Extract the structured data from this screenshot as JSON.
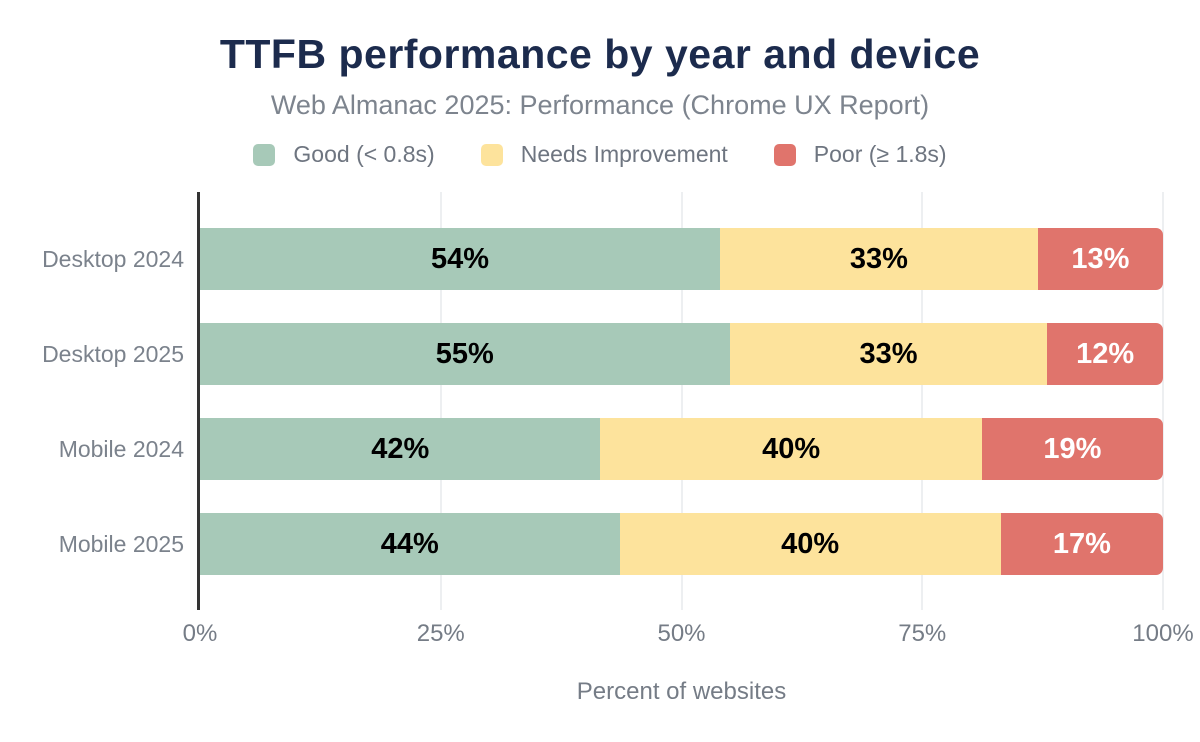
{
  "header": {
    "title": "TTFB performance by year and device",
    "subtitle": "Web Almanac 2025: Performance (Chrome UX Report)"
  },
  "colors": {
    "good": "#a7c9b8",
    "needs_improvement": "#fde39c",
    "poor": "#e0746c",
    "title": "#1c2b4d",
    "axis_line": "#333333",
    "gridline": "#edeff1",
    "muted_text": "#757c86"
  },
  "chart_data": {
    "type": "bar",
    "orientation": "horizontal",
    "stacked": true,
    "title": "TTFB performance by year and device",
    "subtitle": "Web Almanac 2025: Performance (Chrome UX Report)",
    "categories": [
      "Desktop 2024",
      "Desktop 2025",
      "Mobile 2024",
      "Mobile 2025"
    ],
    "series": [
      {
        "name": "Good (< 0.8s)",
        "color": "#a7c9b8",
        "label_color": "#000000",
        "values": [
          54,
          55,
          42,
          44
        ]
      },
      {
        "name": "Needs Improvement",
        "color": "#fde39c",
        "label_color": "#000000",
        "values": [
          33,
          33,
          40,
          40
        ]
      },
      {
        "name": "Poor (≥ 1.8s)",
        "color": "#e0746c",
        "label_color": "#ffffff",
        "values": [
          13,
          12,
          19,
          17
        ]
      }
    ],
    "value_suffix": "%",
    "xlabel": "Percent of websites",
    "xlim": [
      0,
      100
    ],
    "x_ticks": [
      {
        "value": 0,
        "label": "0%"
      },
      {
        "value": 25,
        "label": "25%"
      },
      {
        "value": 50,
        "label": "50%"
      },
      {
        "value": 75,
        "label": "75%"
      },
      {
        "value": 100,
        "label": "100%"
      }
    ],
    "grid": "vertical",
    "legend_position": "top"
  }
}
